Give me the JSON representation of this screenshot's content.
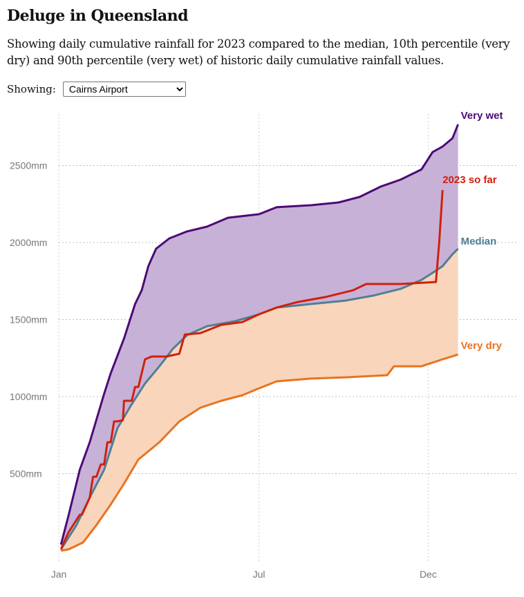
{
  "header": {
    "title": "Deluge in Queensland",
    "subtitle": "Showing daily cumulative rainfall for 2023 compared to the median, 10th percentile (very dry) and 90th percentile (very wet) of historic daily cumulative rainfall values.",
    "control_label": "Showing:",
    "selected_station": "Cairns Airport"
  },
  "chart_data": {
    "type": "area",
    "xlabel": "",
    "ylabel": "",
    "x_ticks": [
      {
        "date": "01-01",
        "label": "Jan"
      },
      {
        "date": "07-01",
        "label": "Jul"
      },
      {
        "date": "12-01",
        "label": "Dec"
      }
    ],
    "y_ticks": [
      {
        "value": 500,
        "label": "500mm"
      },
      {
        "value": 1000,
        "label": "1000mm"
      },
      {
        "value": 1500,
        "label": "1500mm"
      },
      {
        "value": 2000,
        "label": "2000mm"
      },
      {
        "value": 2500,
        "label": "2500mm"
      }
    ],
    "ylim": [
      0,
      2800
    ],
    "xlim": [
      "01-01",
      "12-31"
    ],
    "grid": true,
    "colors": {
      "very_wet": "#4b0a75",
      "median": "#4f7f93",
      "very_dry": "#e8731f",
      "so_far": "#d0200c",
      "wet_fill": "#c8b1d6",
      "dry_fill": "#f8d5bb"
    },
    "series": [
      {
        "name": "Very wet",
        "key": "very_wet",
        "points": [
          [
            "01-03",
            40
          ],
          [
            "01-10",
            233
          ],
          [
            "01-20",
            525
          ],
          [
            "01-29",
            704
          ],
          [
            "02-11",
            1018
          ],
          [
            "02-17",
            1152
          ],
          [
            "03-01",
            1377
          ],
          [
            "03-11",
            1601
          ],
          [
            "03-17",
            1690
          ],
          [
            "03-23",
            1847
          ],
          [
            "03-30",
            1960
          ],
          [
            "04-11",
            2027
          ],
          [
            "04-27",
            2072
          ],
          [
            "05-15",
            2103
          ],
          [
            "06-03",
            2161
          ],
          [
            "07-01",
            2184
          ],
          [
            "07-17",
            2229
          ],
          [
            "08-17",
            2242
          ],
          [
            "09-11",
            2260
          ],
          [
            "09-30",
            2296
          ],
          [
            "10-19",
            2363
          ],
          [
            "11-06",
            2408
          ],
          [
            "11-25",
            2475
          ],
          [
            "12-05",
            2587
          ],
          [
            "12-14",
            2623
          ],
          [
            "12-23",
            2677
          ],
          [
            "12-28",
            2767
          ]
        ]
      },
      {
        "name": "Median",
        "key": "median",
        "points": [
          [
            "01-03",
            9
          ],
          [
            "01-17",
            166
          ],
          [
            "01-29",
            345
          ],
          [
            "02-11",
            525
          ],
          [
            "02-23",
            794
          ],
          [
            "03-08",
            951
          ],
          [
            "03-20",
            1085
          ],
          [
            "04-02",
            1197
          ],
          [
            "04-14",
            1309
          ],
          [
            "04-27",
            1399
          ],
          [
            "05-15",
            1457
          ],
          [
            "06-09",
            1489
          ],
          [
            "07-01",
            1534
          ],
          [
            "07-17",
            1578
          ],
          [
            "08-17",
            1601
          ],
          [
            "09-17",
            1623
          ],
          [
            "10-12",
            1655
          ],
          [
            "11-06",
            1699
          ],
          [
            "11-25",
            1758
          ],
          [
            "12-05",
            1803
          ],
          [
            "12-14",
            1847
          ],
          [
            "12-23",
            1924
          ],
          [
            "12-28",
            1960
          ]
        ]
      },
      {
        "name": "Very dry",
        "key": "very_dry",
        "points": [
          [
            "01-03",
            0
          ],
          [
            "01-10",
            9
          ],
          [
            "01-23",
            54
          ],
          [
            "02-04",
            166
          ],
          [
            "02-17",
            300
          ],
          [
            "03-01",
            435
          ],
          [
            "03-14",
            592
          ],
          [
            "04-02",
            704
          ],
          [
            "04-20",
            839
          ],
          [
            "05-09",
            928
          ],
          [
            "05-28",
            973
          ],
          [
            "06-16",
            1009
          ],
          [
            "07-01",
            1054
          ],
          [
            "07-17",
            1099
          ],
          [
            "08-17",
            1117
          ],
          [
            "09-17",
            1125
          ],
          [
            "10-25",
            1139
          ],
          [
            "10-31",
            1197
          ],
          [
            "11-25",
            1197
          ],
          [
            "12-14",
            1242
          ],
          [
            "12-28",
            1273
          ]
        ]
      },
      {
        "name": "2023 so far",
        "key": "so_far",
        "points": [
          [
            "01-03",
            9
          ],
          [
            "01-07",
            76
          ],
          [
            "01-10",
            121
          ],
          [
            "01-20",
            233
          ],
          [
            "01-22",
            233
          ],
          [
            "01-29",
            345
          ],
          [
            "02-01",
            480
          ],
          [
            "02-04",
            480
          ],
          [
            "02-08",
            560
          ],
          [
            "02-11",
            560
          ],
          [
            "02-14",
            704
          ],
          [
            "02-17",
            704
          ],
          [
            "02-20",
            839
          ],
          [
            "02-23",
            839
          ],
          [
            "02-28",
            847
          ],
          [
            "03-01",
            973
          ],
          [
            "03-08",
            973
          ],
          [
            "03-11",
            1063
          ],
          [
            "03-14",
            1063
          ],
          [
            "03-20",
            1242
          ],
          [
            "03-26",
            1260
          ],
          [
            "04-08",
            1260
          ],
          [
            "04-20",
            1278
          ],
          [
            "04-25",
            1403
          ],
          [
            "05-09",
            1412
          ],
          [
            "05-28",
            1466
          ],
          [
            "06-16",
            1484
          ],
          [
            "07-01",
            1534
          ],
          [
            "07-17",
            1578
          ],
          [
            "08-05",
            1614
          ],
          [
            "08-30",
            1646
          ],
          [
            "09-24",
            1690
          ],
          [
            "10-06",
            1731
          ],
          [
            "11-06",
            1731
          ],
          [
            "12-08",
            1744
          ],
          [
            "12-11",
            2004
          ],
          [
            "12-14",
            2341
          ]
        ]
      }
    ]
  }
}
